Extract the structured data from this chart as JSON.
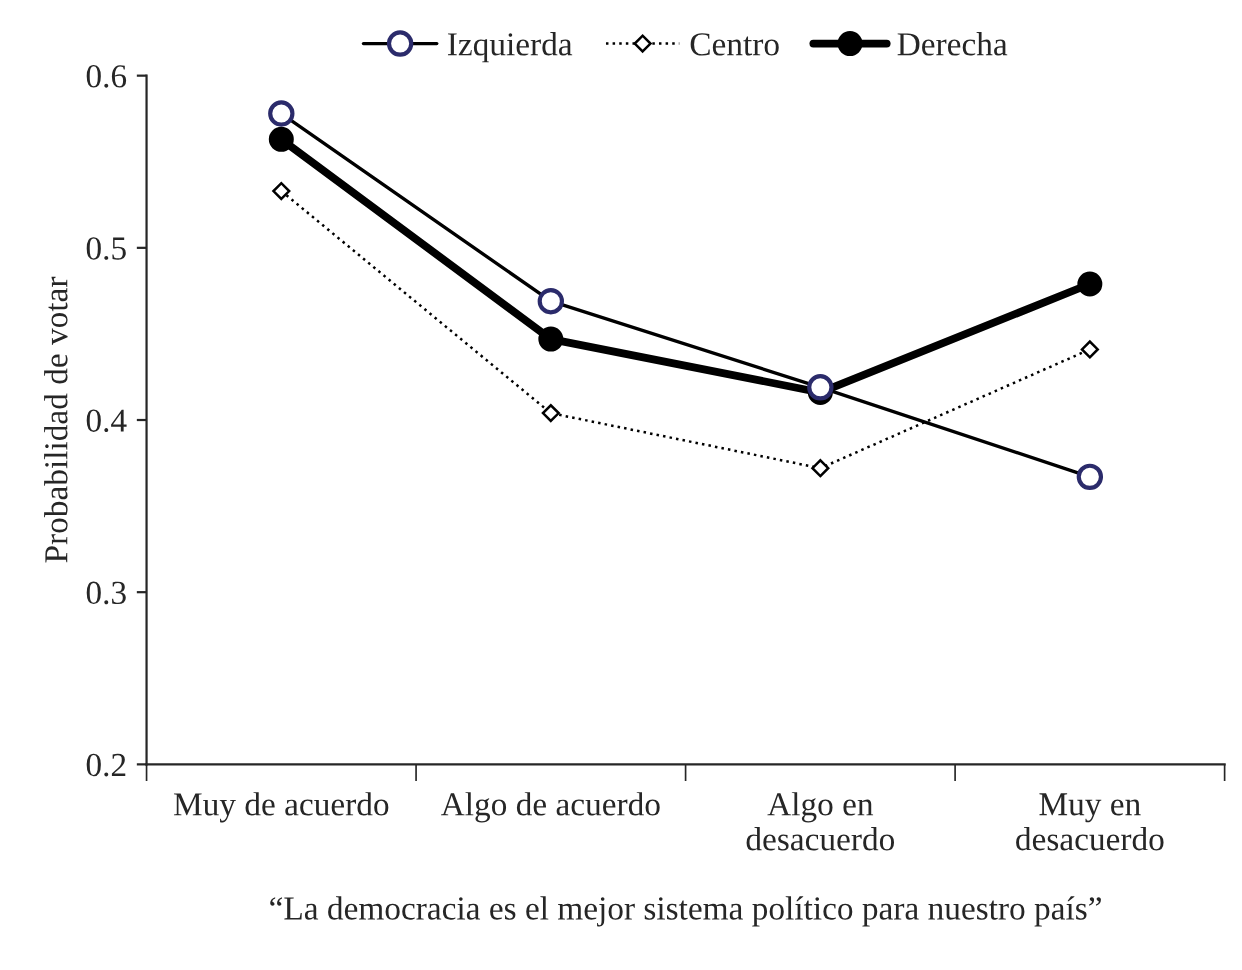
{
  "chart_data": {
    "type": "line",
    "xlabel": "“La democracia es el mejor sistema político para nuestro país”",
    "ylabel": "Probabilidad de votar",
    "categories": [
      "Muy de acuerdo",
      "Algo de acuerdo",
      "Algo en\ndesacuerdo",
      "Muy en\ndesacuerdo"
    ],
    "series": [
      {
        "name": "Izquierda",
        "color": "#000000",
        "marker": "circle",
        "line_style": "solid",
        "values": [
          0.578,
          0.469,
          0.419,
          0.367
        ]
      },
      {
        "name": "Centro",
        "color": "#000000",
        "marker": "diamond",
        "line_style": "dotted",
        "values": [
          0.533,
          0.404,
          0.372,
          0.441
        ]
      },
      {
        "name": "Derecha",
        "color": "#000000",
        "marker": "circle",
        "line_style": "solid",
        "values": [
          0.563,
          0.447,
          0.416,
          0.479
        ]
      }
    ],
    "ylim": [
      0.2,
      0.6
    ],
    "yticks": [
      0.2,
      0.3,
      0.4,
      0.5,
      0.6
    ],
    "grid": false,
    "legend": "top"
  }
}
